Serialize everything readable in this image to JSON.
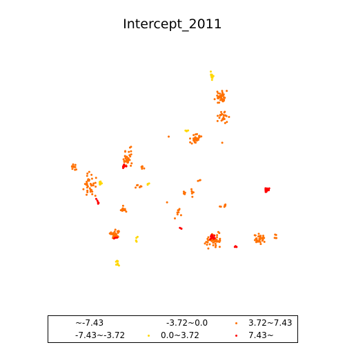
{
  "map": {
    "title": "Intercept_2011",
    "legend": {
      "items": [
        {
          "label": "~-7.43",
          "color": "#ffffff"
        },
        {
          "label": "-7.43~-3.72",
          "color": "#ffffff"
        },
        {
          "label": "-3.72~0.0",
          "color": "#ffffff"
        },
        {
          "label": "0.0~3.72",
          "color": "#ffd700"
        },
        {
          "label": "3.72~7.43",
          "color": "#ff7000"
        },
        {
          "label": "7.43~",
          "color": "#ff0000"
        }
      ]
    }
  }
}
